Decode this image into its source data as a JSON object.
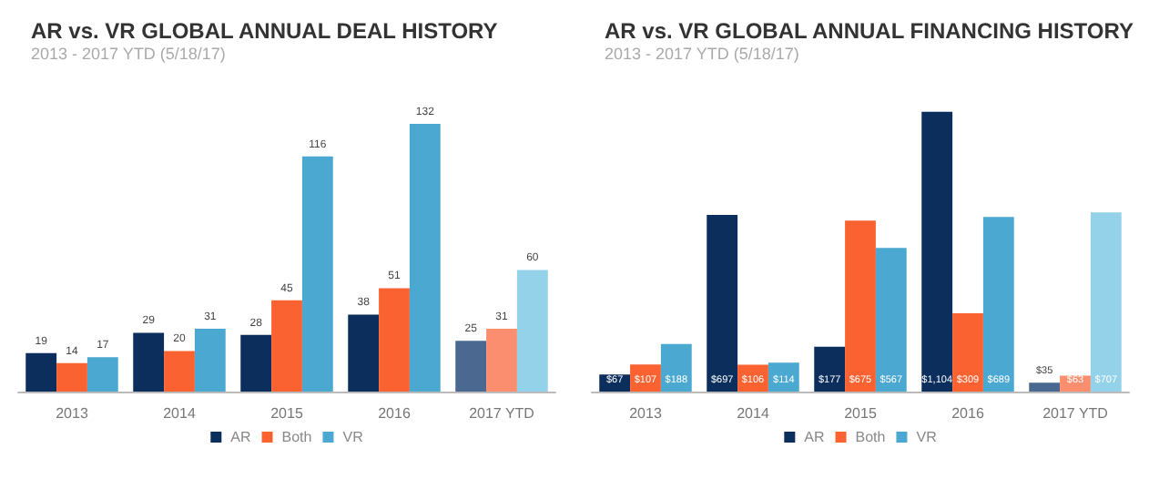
{
  "chart_data": [
    {
      "type": "bar",
      "title": "AR vs. VR GLOBAL ANNUAL DEAL HISTORY",
      "subtitle": "2013 - 2017 YTD (5/18/17)",
      "categories": [
        "2013",
        "2014",
        "2015",
        "2016",
        "2017 YTD"
      ],
      "legend": "bottom",
      "data_labels": true,
      "series": [
        {
          "name": "AR",
          "color": "#0b2e5c",
          "colors": [
            "#0b2e5c",
            "#0b2e5c",
            "#0b2e5c",
            "#0b2e5c",
            "#4a6890"
          ],
          "values": [
            19,
            29,
            28,
            38,
            25
          ]
        },
        {
          "name": "Both",
          "color": "#fb6232",
          "colors": [
            "#fb6232",
            "#fb6232",
            "#fb6232",
            "#fb6232",
            "#fb8e6e"
          ],
          "values": [
            14,
            20,
            45,
            51,
            31
          ]
        },
        {
          "name": "VR",
          "color": "#4ba8d1",
          "colors": [
            "#4ba8d1",
            "#4ba8d1",
            "#4ba8d1",
            "#4ba8d1",
            "#94d2ea"
          ],
          "values": [
            17,
            31,
            116,
            132,
            60
          ]
        }
      ]
    },
    {
      "type": "bar",
      "title": "AR vs. VR GLOBAL ANNUAL FINANCING HISTORY",
      "subtitle": "2013 - 2017 YTD (5/18/17)",
      "categories": [
        "2013",
        "2014",
        "2015",
        "2016",
        "2017 YTD"
      ],
      "legend": "bottom",
      "series": [
        {
          "name": "AR",
          "color": "#0b2e5c",
          "colors": [
            "#0b2e5c",
            "#0b2e5c",
            "#0b2e5c",
            "#0b2e5c",
            "#4a6890"
          ],
          "values": [
            67,
            697,
            177,
            1104,
            35
          ],
          "value_labels": [
            "$67",
            "$697",
            "$177",
            "$1,104",
            "$35"
          ]
        },
        {
          "name": "Both",
          "color": "#fb6232",
          "colors": [
            "#fb6232",
            "#fb6232",
            "#fb6232",
            "#fb6232",
            "#fb8e6e"
          ],
          "values": [
            107,
            106,
            675,
            309,
            63
          ],
          "value_labels": [
            "$107",
            "$106",
            "$675",
            "$309",
            "$63"
          ]
        },
        {
          "name": "VR",
          "color": "#4ba8d1",
          "colors": [
            "#4ba8d1",
            "#4ba8d1",
            "#4ba8d1",
            "#4ba8d1",
            "#94d2ea"
          ],
          "values": [
            188,
            114,
            567,
            689,
            707
          ],
          "value_labels": [
            "$188",
            "$114",
            "$567",
            "$689",
            "$707"
          ]
        }
      ]
    }
  ]
}
